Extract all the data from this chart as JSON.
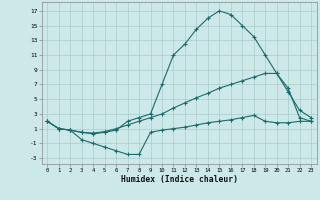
{
  "background_color": "#cde8e8",
  "grid_color": "#aacccc",
  "line_color": "#1a6b6b",
  "xlabel": "Humidex (Indice chaleur)",
  "xlim": [
    -0.5,
    23.5
  ],
  "ylim": [
    -3.8,
    18.2
  ],
  "xticks": [
    0,
    1,
    2,
    3,
    4,
    5,
    6,
    7,
    8,
    9,
    10,
    11,
    12,
    13,
    14,
    15,
    16,
    17,
    18,
    19,
    20,
    21,
    22,
    23
  ],
  "yticks": [
    -3,
    -1,
    1,
    3,
    5,
    7,
    9,
    11,
    13,
    15,
    17
  ],
  "line_curve_x": [
    0,
    1,
    2,
    3,
    4,
    5,
    6,
    7,
    8,
    9,
    10,
    11,
    12,
    13,
    14,
    15,
    16,
    17,
    18,
    19,
    20,
    21,
    22,
    23
  ],
  "line_curve_y": [
    2,
    1,
    0.8,
    0.5,
    0.3,
    0.5,
    0.8,
    2.0,
    2.5,
    3.0,
    7.0,
    11.0,
    12.5,
    14.5,
    16.0,
    17.0,
    16.5,
    15.0,
    13.5,
    11.0,
    8.5,
    6.0,
    3.5,
    2.5
  ],
  "line_diag_x": [
    0,
    1,
    2,
    3,
    4,
    5,
    6,
    7,
    8,
    9,
    10,
    11,
    12,
    13,
    14,
    15,
    16,
    17,
    18,
    19,
    20,
    21,
    22,
    23
  ],
  "line_diag_y": [
    2,
    1,
    0.8,
    0.5,
    0.4,
    0.6,
    1.0,
    1.5,
    2.0,
    2.5,
    3.0,
    3.8,
    4.5,
    5.2,
    5.8,
    6.5,
    7.0,
    7.5,
    8.0,
    8.5,
    8.5,
    6.5,
    2.5,
    2.0
  ],
  "line_flat_x": [
    0,
    1,
    2,
    3,
    4,
    5,
    6,
    7,
    8,
    9,
    10,
    11,
    12,
    13,
    14,
    15,
    16,
    17,
    18,
    19,
    20,
    21,
    22,
    23
  ],
  "line_flat_y": [
    2,
    1,
    0.8,
    -0.5,
    -1.0,
    -1.5,
    -2.0,
    -2.5,
    -2.5,
    0.5,
    0.8,
    1.0,
    1.2,
    1.5,
    1.8,
    2.0,
    2.2,
    2.5,
    2.8,
    2.0,
    1.8,
    1.8,
    2.0,
    2.0
  ]
}
